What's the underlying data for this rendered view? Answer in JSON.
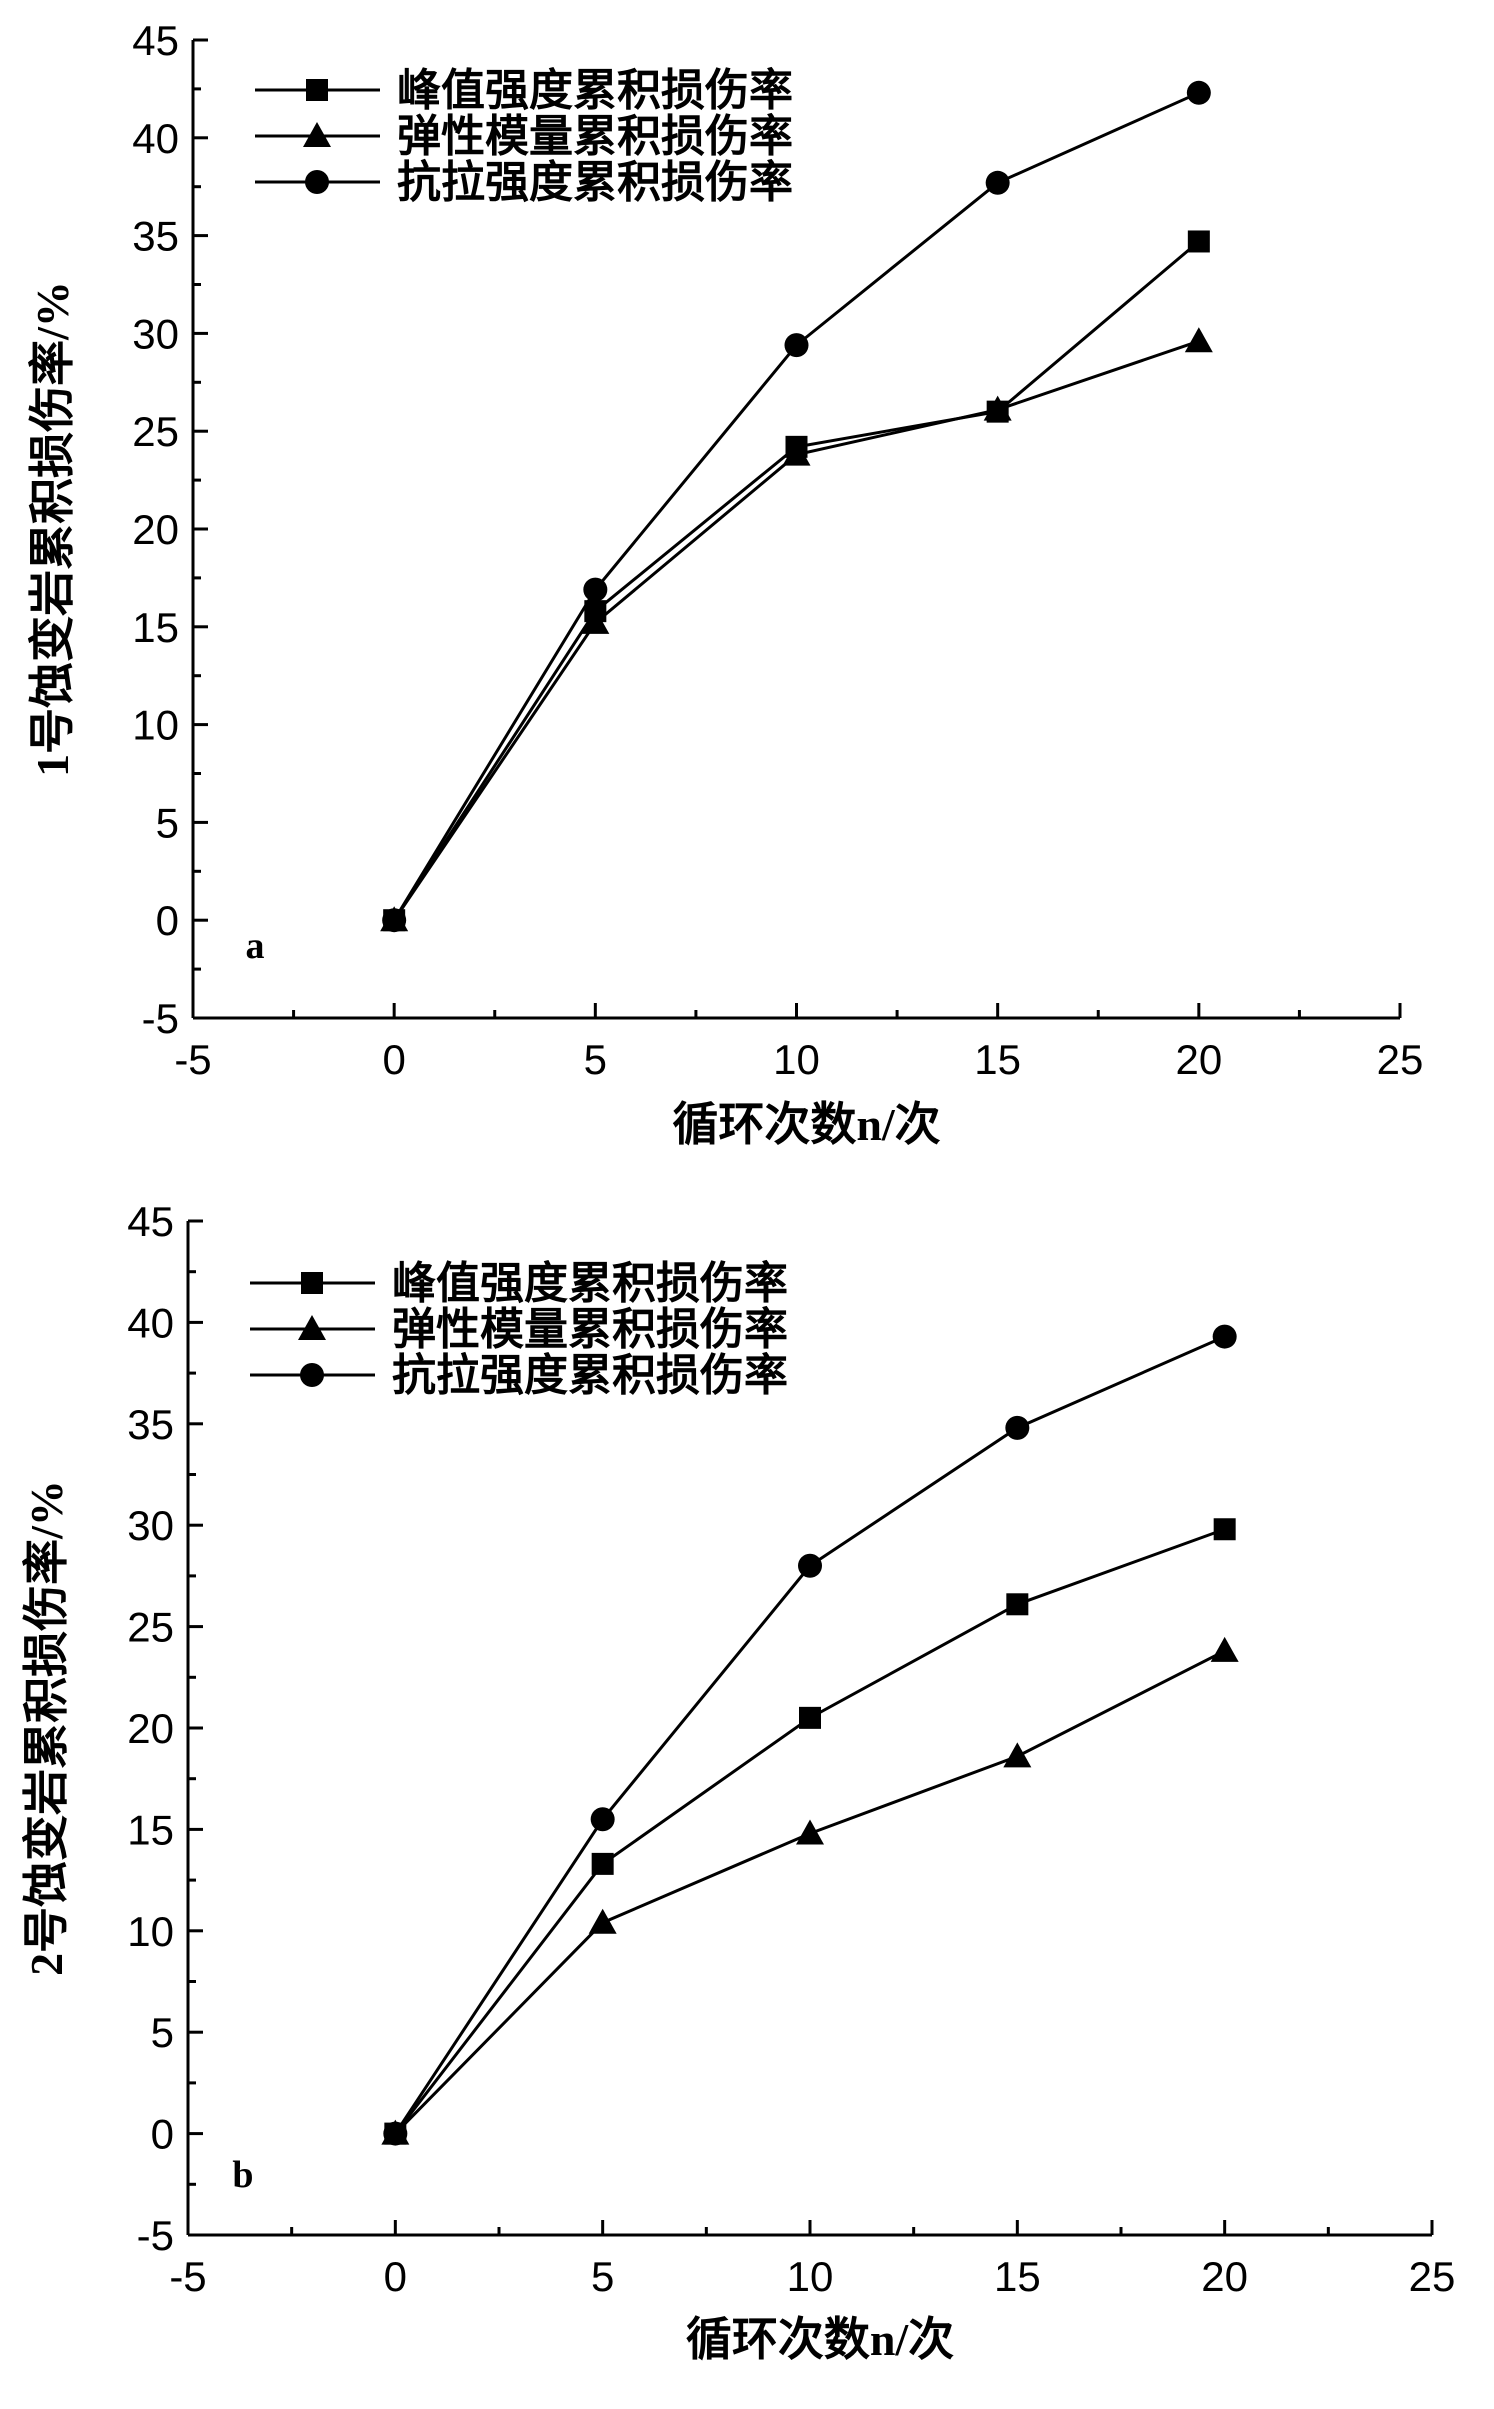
{
  "chart_data": [
    {
      "type": "line",
      "panel_label": "a",
      "xlabel": "循环次数n/次",
      "ylabel": "1号蚀变岩累积损伤率/%",
      "x": [
        0,
        5,
        10,
        15,
        20
      ],
      "xlim": [
        -5,
        25
      ],
      "ylim": [
        -5,
        45
      ],
      "xticks": [
        -5,
        0,
        5,
        10,
        15,
        20,
        25
      ],
      "yticks": [
        -5,
        0,
        5,
        10,
        15,
        20,
        25,
        30,
        35,
        40,
        45
      ],
      "legend_position": "top-left",
      "series": [
        {
          "name": "峰值强度累积损伤率",
          "marker": "square",
          "values": [
            0,
            15.8,
            24.2,
            26.0,
            34.7
          ]
        },
        {
          "name": "弹性模量累积损伤率",
          "marker": "triangle",
          "values": [
            0,
            15.2,
            23.8,
            26.1,
            29.6
          ]
        },
        {
          "name": "抗拉强度累积损伤率",
          "marker": "circle",
          "values": [
            0,
            16.9,
            29.4,
            37.7,
            42.3
          ]
        }
      ]
    },
    {
      "type": "line",
      "panel_label": "b",
      "xlabel": "循环次数n/次",
      "ylabel": "2号蚀变岩累积损伤率/%",
      "x": [
        0,
        5,
        10,
        15,
        20
      ],
      "xlim": [
        -5,
        25
      ],
      "ylim": [
        -5,
        45
      ],
      "xticks": [
        -5,
        0,
        5,
        10,
        15,
        20,
        25
      ],
      "yticks": [
        -5,
        0,
        5,
        10,
        15,
        20,
        25,
        30,
        35,
        40,
        45
      ],
      "legend_position": "top-left",
      "series": [
        {
          "name": "峰值强度累积损伤率",
          "marker": "square",
          "values": [
            0,
            13.3,
            20.5,
            26.1,
            29.8
          ]
        },
        {
          "name": "弹性模量累积损伤率",
          "marker": "triangle",
          "values": [
            0,
            10.4,
            14.8,
            18.6,
            23.8
          ]
        },
        {
          "name": "抗拉强度累积损伤率",
          "marker": "circle",
          "values": [
            0,
            15.5,
            28.0,
            34.8,
            39.3
          ]
        }
      ]
    }
  ]
}
